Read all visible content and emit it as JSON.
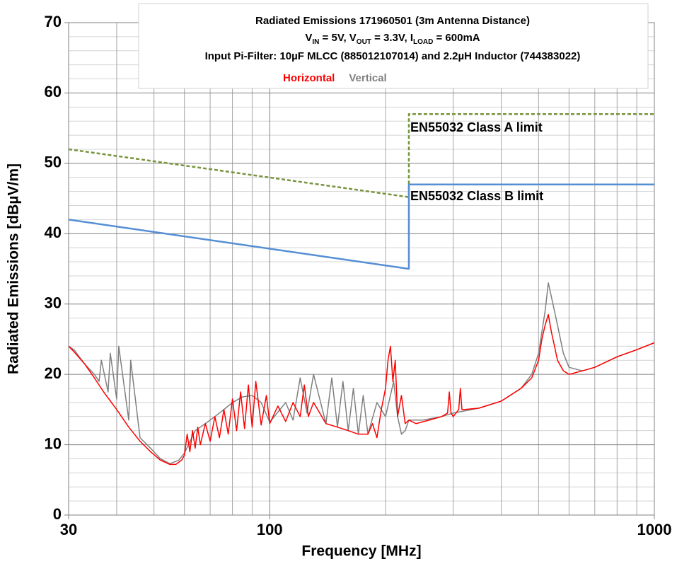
{
  "chart_data": {
    "type": "line",
    "title_lines": [
      [
        {
          "text": "Radiated Emissions 171960501 (3m Antenna Distance)"
        }
      ],
      [
        {
          "text": "V"
        },
        {
          "text": "IN",
          "sub": true
        },
        {
          "text": " = 5V, V"
        },
        {
          "text": "OUT",
          "sub": true
        },
        {
          "text": " = 3.3V, I"
        },
        {
          "text": "LOAD",
          "sub": true
        },
        {
          "text": " = 600mA"
        }
      ],
      [
        {
          "text": "Input Pi-Filter: 10µF MLCC (885012107014) and 2.2µH Inductor (744383022)"
        }
      ]
    ],
    "x_label": "Frequency [MHz]",
    "y_label": "Radiated Emissions [dBµV/m]",
    "x_log": true,
    "xlim": [
      30,
      1000
    ],
    "xticks": [
      30,
      100,
      1000
    ],
    "xminor_ticks": [
      40,
      50,
      60,
      70,
      80,
      90,
      200,
      300,
      400,
      500,
      600,
      700,
      800,
      900
    ],
    "ylim": [
      0,
      70
    ],
    "yticks": [
      0,
      10,
      20,
      30,
      40,
      50,
      60,
      70
    ],
    "yminor_ticks": [
      2,
      4,
      6,
      8,
      12,
      14,
      16,
      18,
      22,
      24,
      26,
      28,
      32,
      34,
      36,
      38,
      42,
      44,
      46,
      48,
      52,
      54,
      56,
      58,
      62,
      64,
      66,
      68
    ],
    "grid": true,
    "series": [
      {
        "name": "Vertical",
        "color": "#808080",
        "legend": true,
        "x": [
          30,
          31,
          33,
          35,
          36,
          36.5,
          38,
          38.5,
          40,
          40.5,
          43,
          43.5,
          46,
          49,
          52,
          55,
          58,
          60,
          64,
          68,
          72,
          76,
          80,
          85,
          90,
          95,
          100,
          110,
          115,
          120,
          125,
          130,
          140,
          145,
          150,
          155,
          160,
          165,
          170,
          175,
          180,
          190,
          200,
          210,
          215,
          220,
          225,
          230,
          250,
          280,
          300,
          350,
          400,
          450,
          480,
          500,
          520,
          530,
          540,
          560,
          580,
          600,
          650,
          700,
          800,
          900,
          1000
        ],
        "values": [
          24,
          23.5,
          21.5,
          20,
          19,
          22,
          17.5,
          23,
          16.5,
          24,
          13.5,
          22,
          11,
          9.5,
          8,
          7.3,
          7.8,
          8.8,
          12,
          13,
          14,
          15,
          16,
          16.8,
          17,
          16,
          13.2,
          16,
          13.5,
          19.5,
          14.5,
          20,
          13,
          19.5,
          12.5,
          19,
          12,
          18,
          11.5,
          17,
          11.5,
          16,
          14,
          19,
          14,
          11.5,
          12,
          13.5,
          13.5,
          14,
          14.5,
          15.2,
          16.2,
          18,
          20,
          23,
          29,
          33,
          31,
          27,
          23,
          21,
          20.5,
          21,
          22.5,
          23.5,
          24.5
        ]
      },
      {
        "name": "Horizontal",
        "color": "#ff0000",
        "legend": true,
        "x": [
          30,
          31,
          33,
          35,
          37,
          40,
          43,
          46,
          49,
          52,
          55,
          57,
          59,
          60,
          61,
          62,
          63,
          64,
          65,
          66,
          68,
          70,
          72,
          74,
          76,
          78,
          80,
          82,
          84,
          86,
          88,
          90,
          92,
          95,
          98,
          100,
          105,
          110,
          115,
          120,
          123,
          126,
          130,
          140,
          150,
          160,
          170,
          180,
          185,
          190,
          195,
          200,
          203,
          206,
          209,
          212,
          215,
          220,
          225,
          230,
          240,
          260,
          280,
          290,
          293,
          296,
          300,
          310,
          313,
          316,
          320,
          350,
          400,
          450,
          480,
          500,
          510,
          520,
          530,
          540,
          550,
          560,
          580,
          600,
          650,
          700,
          800,
          900,
          1000
        ],
        "values": [
          24,
          23.2,
          21.5,
          19.5,
          17.5,
          15,
          12.5,
          10.5,
          9,
          7.8,
          7.2,
          7.2,
          7.8,
          8.5,
          11.5,
          9,
          12,
          9.5,
          12.5,
          10,
          13,
          10.5,
          14,
          11,
          15,
          11.5,
          16.5,
          12,
          17.5,
          12.3,
          18.5,
          12.5,
          19,
          12.8,
          17,
          13,
          15.5,
          13.3,
          16,
          14,
          18.5,
          14,
          16,
          13,
          12.5,
          12,
          11.5,
          11.5,
          13,
          11,
          15,
          18,
          22,
          24,
          19,
          22,
          14,
          17,
          13,
          13.5,
          13,
          13.5,
          14,
          14.5,
          17.5,
          14.5,
          14,
          15,
          18,
          15,
          15,
          15.2,
          16.2,
          18,
          19.5,
          22,
          25,
          27,
          28.5,
          26,
          24,
          22,
          20.5,
          20,
          20.5,
          21,
          22.5,
          23.5,
          24.5
        ]
      },
      {
        "name": "EN55032 Class A limit",
        "color": "#77933c",
        "dashed": true,
        "x": [
          30,
          230,
          230,
          1000
        ],
        "values": [
          52,
          45.2,
          57,
          57
        ]
      },
      {
        "name": "EN55032 Class B limit",
        "color": "#558ed5",
        "x": [
          30,
          230,
          230,
          1000
        ],
        "values": [
          42,
          35,
          47,
          47
        ]
      }
    ]
  }
}
